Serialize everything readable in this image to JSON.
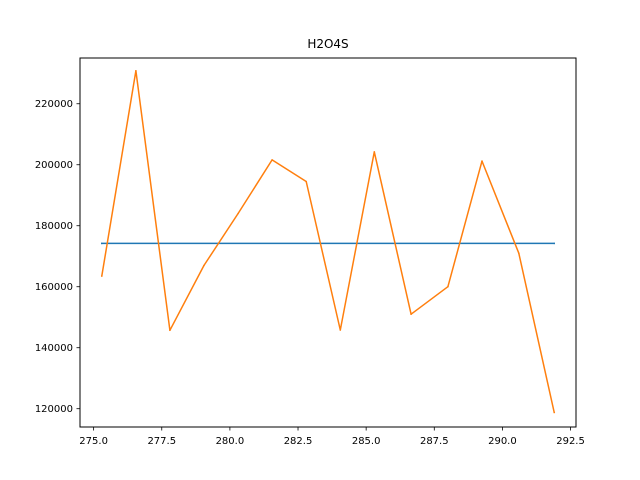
{
  "chart_data": {
    "type": "line",
    "title": "H2O4S",
    "xlabel": "",
    "ylabel": "",
    "xlim": [
      274.5,
      292.7
    ],
    "ylim": [
      114000,
      235000
    ],
    "grid": false,
    "legend": "none",
    "x_ticks": [
      275.0,
      277.5,
      280.0,
      282.5,
      285.0,
      287.5,
      290.0,
      292.5
    ],
    "x_tick_labels": [
      "275.0",
      "277.5",
      "280.0",
      "282.5",
      "285.0",
      "287.5",
      "290.0",
      "292.5"
    ],
    "y_ticks": [
      120000,
      140000,
      160000,
      180000,
      200000,
      220000
    ],
    "y_tick_labels": [
      "120000",
      "140000",
      "160000",
      "180000",
      "200000",
      "220000"
    ],
    "series": [
      {
        "color": "#1f77b4",
        "x": [
          275.3,
          291.9
        ],
        "y": [
          174200,
          174200
        ]
      },
      {
        "color": "#ff7f0e",
        "x": [
          275.3,
          276.55,
          277.8,
          279.05,
          280.3,
          281.55,
          282.8,
          284.05,
          285.3,
          286.65,
          288.0,
          289.25,
          290.6,
          291.9
        ],
        "y": [
          163500,
          230800,
          145700,
          167000,
          184000,
          201600,
          194500,
          145800,
          204200,
          151000,
          160000,
          201200,
          171000,
          118800
        ]
      }
    ]
  }
}
